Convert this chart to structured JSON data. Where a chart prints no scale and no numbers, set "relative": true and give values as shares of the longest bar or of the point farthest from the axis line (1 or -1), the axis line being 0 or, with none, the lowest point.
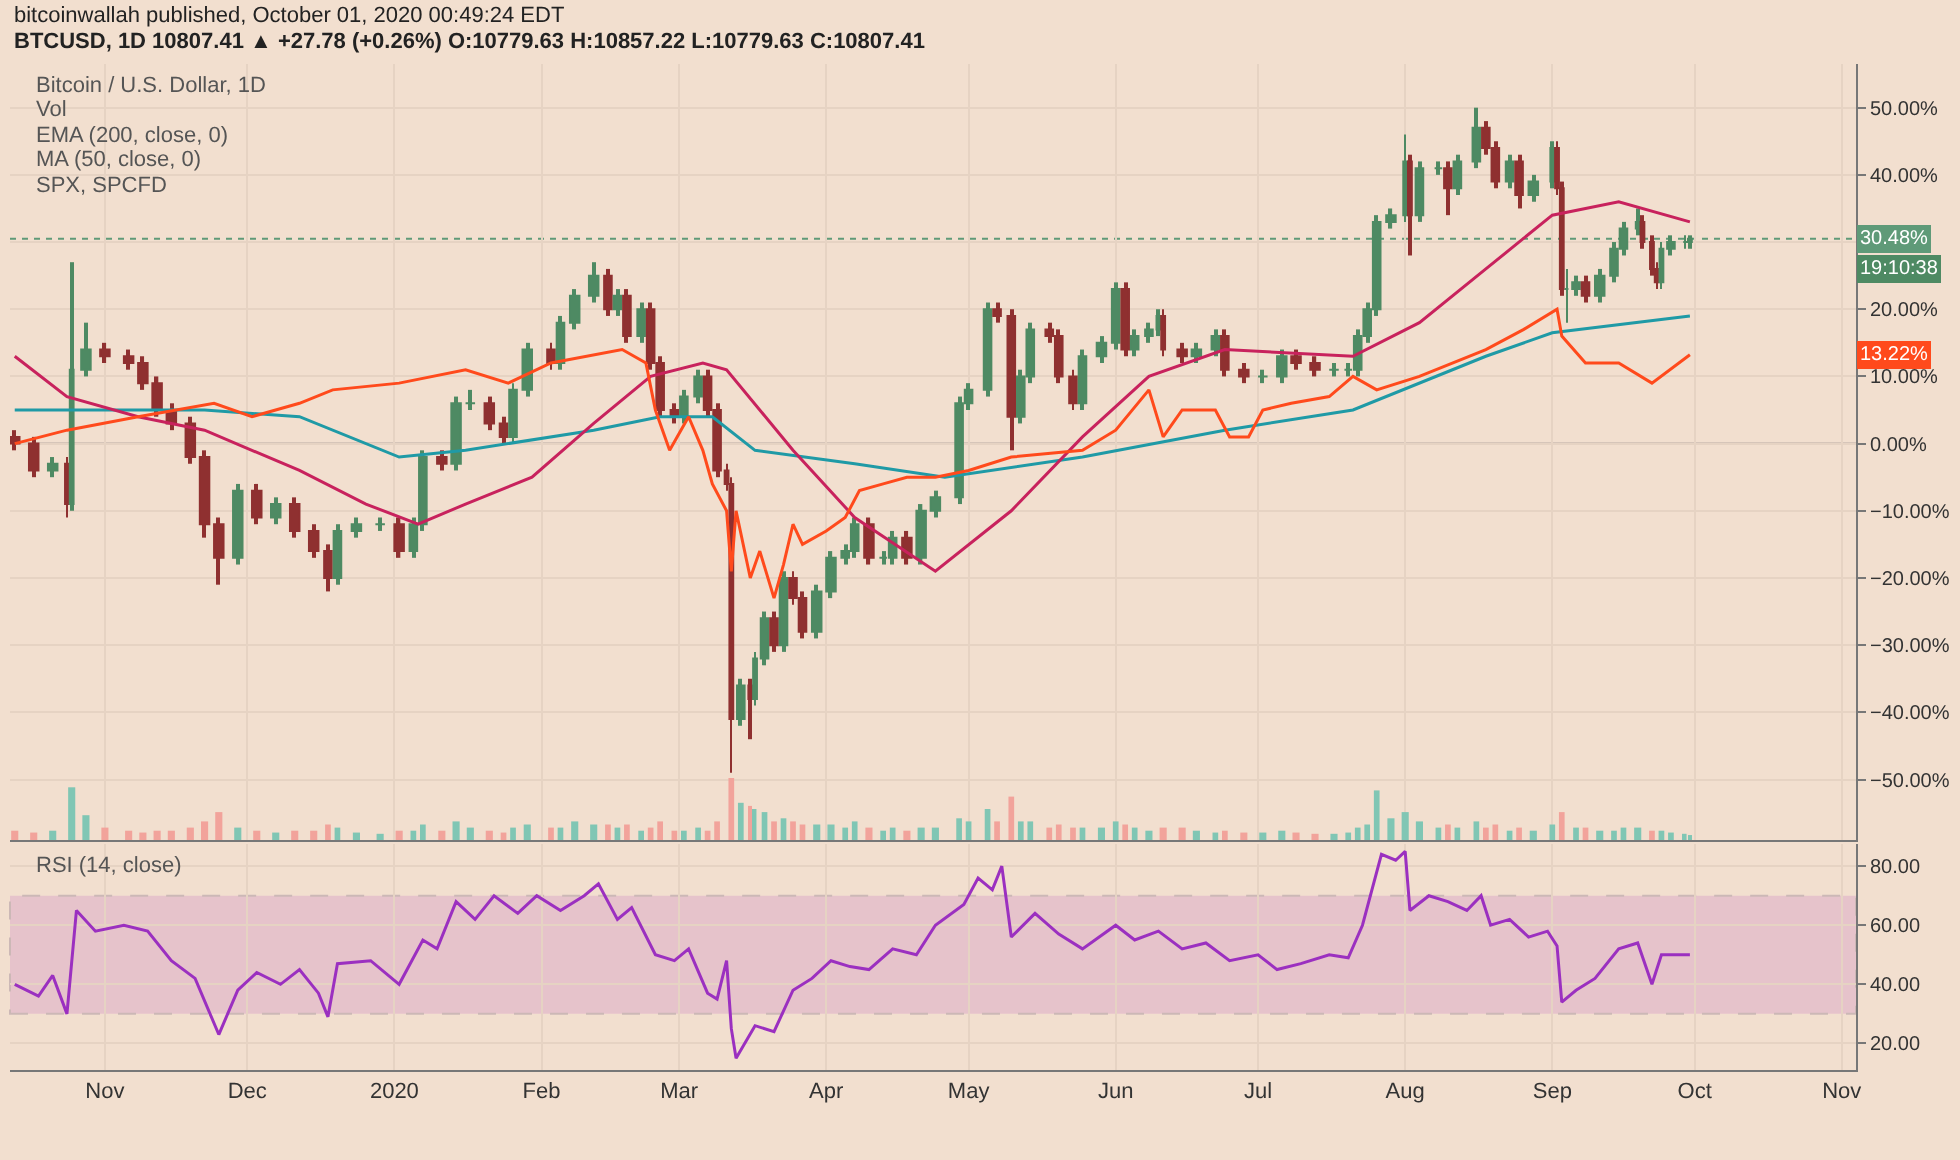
{
  "chart_data": [
    {
      "type": "candlestick",
      "title": "bitcoinwallah published, October 01, 2020 00:49:24 EDT",
      "subtitle": "BTCUSD, 1D 10807.41 ▲ +27.78 (+0.26%) O:10779.63 H:10857.22 L:10779.63 C:10807.41",
      "x": [
        "2019-10-13",
        "2019-10-17",
        "2019-10-21",
        "2019-10-24",
        "2019-10-25",
        "2019-10-28",
        "2019-11-01",
        "2019-11-06",
        "2019-11-09",
        "2019-11-12",
        "2019-11-15",
        "2019-11-19",
        "2019-11-22",
        "2019-11-25",
        "2019-11-29",
        "2019-12-03",
        "2019-12-07",
        "2019-12-11",
        "2019-12-15",
        "2019-12-18",
        "2019-12-20",
        "2019-12-24",
        "2019-12-29",
        "2020-01-02",
        "2020-01-05",
        "2020-01-07",
        "2020-01-11",
        "2020-01-14",
        "2020-01-17",
        "2020-01-21",
        "2020-01-24",
        "2020-01-26",
        "2020-01-29",
        "2020-02-03",
        "2020-02-05",
        "2020-02-08",
        "2020-02-12",
        "2020-02-15",
        "2020-02-17",
        "2020-02-19",
        "2020-02-22",
        "2020-02-24",
        "2020-02-26",
        "2020-02-29",
        "2020-03-02",
        "2020-03-05",
        "2020-03-07",
        "2020-03-09",
        "2020-03-11",
        "2020-03-12",
        "2020-03-14",
        "2020-03-16",
        "2020-03-17",
        "2020-03-19",
        "2020-03-21",
        "2020-03-23",
        "2020-03-25",
        "2020-03-27",
        "2020-03-30",
        "2020-04-02",
        "2020-04-05",
        "2020-04-07",
        "2020-04-10",
        "2020-04-13",
        "2020-04-15",
        "2020-04-18",
        "2020-04-21",
        "2020-04-24",
        "2020-04-29",
        "2020-05-01",
        "2020-05-05",
        "2020-05-07",
        "2020-05-10",
        "2020-05-12",
        "2020-05-14",
        "2020-05-18",
        "2020-05-20",
        "2020-05-23",
        "2020-05-25",
        "2020-05-29",
        "2020-06-01",
        "2020-06-03",
        "2020-06-05",
        "2020-06-08",
        "2020-06-10",
        "2020-06-11",
        "2020-06-15",
        "2020-06-18",
        "2020-06-22",
        "2020-06-24",
        "2020-06-28",
        "2020-07-02",
        "2020-07-06",
        "2020-07-09",
        "2020-07-13",
        "2020-07-17",
        "2020-07-20",
        "2020-07-22",
        "2020-07-24",
        "2020-07-26",
        "2020-07-29",
        "2020-08-01",
        "2020-08-02",
        "2020-08-04",
        "2020-08-08",
        "2020-08-10",
        "2020-08-12",
        "2020-08-16",
        "2020-08-18",
        "2020-08-20",
        "2020-08-23",
        "2020-08-25",
        "2020-08-28",
        "2020-09-01",
        "2020-09-02",
        "2020-09-03",
        "2020-09-04",
        "2020-09-06",
        "2020-09-08",
        "2020-09-11",
        "2020-09-14",
        "2020-09-16",
        "2020-09-19",
        "2020-09-20",
        "2020-09-22",
        "2020-09-23",
        "2020-09-24",
        "2020-09-26",
        "2020-09-29",
        "2020-09-30"
      ],
      "ohlc": [
        [
          1,
          2,
          -1,
          0
        ],
        [
          0,
          1,
          -5,
          -4
        ],
        [
          -4,
          -2,
          -5,
          -3
        ],
        [
          -3,
          -2,
          -11,
          -9
        ],
        [
          -9,
          27,
          -10,
          11
        ],
        [
          11,
          18,
          10,
          14
        ],
        [
          14,
          15,
          12,
          13
        ],
        [
          13,
          14,
          11,
          12
        ],
        [
          12,
          13,
          8,
          9
        ],
        [
          9,
          10,
          4,
          5
        ],
        [
          5,
          6,
          2,
          3
        ],
        [
          3,
          4,
          -3,
          -2
        ],
        [
          -2,
          -1,
          -14,
          -12
        ],
        [
          -12,
          -11,
          -21,
          -17
        ],
        [
          -17,
          -6,
          -18,
          -7
        ],
        [
          -7,
          -6,
          -12,
          -11
        ],
        [
          -11,
          -8,
          -12,
          -9
        ],
        [
          -9,
          -8,
          -14,
          -13
        ],
        [
          -13,
          -12,
          -17,
          -16
        ],
        [
          -16,
          -15,
          -22,
          -20
        ],
        [
          -20,
          -12,
          -21,
          -13
        ],
        [
          -13,
          -11,
          -14,
          -12
        ],
        [
          -12,
          -11,
          -13,
          -12
        ],
        [
          -12,
          -11,
          -17,
          -16
        ],
        [
          -16,
          -11,
          -17,
          -12
        ],
        [
          -12,
          -1,
          -13,
          -2
        ],
        [
          -2,
          -1,
          -4,
          -3
        ],
        [
          -3,
          7,
          -4,
          6
        ],
        [
          6,
          8,
          5,
          6
        ],
        [
          6,
          7,
          2,
          3
        ],
        [
          3,
          4,
          0,
          1
        ],
        [
          1,
          9,
          0,
          8
        ],
        [
          8,
          15,
          7,
          14
        ],
        [
          14,
          15,
          11,
          12
        ],
        [
          12,
          19,
          11,
          18
        ],
        [
          18,
          23,
          17,
          22
        ],
        [
          22,
          27,
          21,
          25
        ],
        [
          25,
          26,
          19,
          20
        ],
        [
          20,
          23,
          19,
          22
        ],
        [
          22,
          23,
          15,
          16
        ],
        [
          16,
          21,
          15,
          20
        ],
        [
          20,
          21,
          11,
          12
        ],
        [
          12,
          13,
          4,
          5
        ],
        [
          5,
          6,
          3,
          4
        ],
        [
          4,
          8,
          3,
          7
        ],
        [
          7,
          11,
          6,
          10
        ],
        [
          10,
          11,
          4,
          5
        ],
        [
          5,
          6,
          -5,
          -4
        ],
        [
          -4,
          -3,
          -7,
          -6
        ],
        [
          -6,
          -5,
          -49,
          -41
        ],
        [
          -41,
          -35,
          -42,
          -36
        ],
        [
          -36,
          -35,
          -44,
          -38
        ],
        [
          -38,
          -31,
          -39,
          -32
        ],
        [
          -32,
          -25,
          -33,
          -26
        ],
        [
          -26,
          -25,
          -31,
          -30
        ],
        [
          -30,
          -19,
          -31,
          -20
        ],
        [
          -20,
          -19,
          -24,
          -23
        ],
        [
          -23,
          -22,
          -29,
          -28
        ],
        [
          -28,
          -21,
          -29,
          -22
        ],
        [
          -22,
          -16,
          -23,
          -17
        ],
        [
          -17,
          -15,
          -18,
          -16
        ],
        [
          -16,
          -11,
          -17,
          -12
        ],
        [
          -12,
          -11,
          -18,
          -17
        ],
        [
          -17,
          -16,
          -18,
          -17
        ],
        [
          -17,
          -13,
          -18,
          -14
        ],
        [
          -14,
          -13,
          -18,
          -17
        ],
        [
          -17,
          -9,
          -18,
          -10
        ],
        [
          -10,
          -7,
          -11,
          -8
        ],
        [
          -8,
          7,
          -9,
          6
        ],
        [
          6,
          9,
          5,
          8
        ],
        [
          8,
          21,
          7,
          20
        ],
        [
          20,
          21,
          18,
          19
        ],
        [
          19,
          20,
          -1,
          4
        ],
        [
          4,
          11,
          3,
          10
        ],
        [
          10,
          18,
          9,
          17
        ],
        [
          17,
          18,
          15,
          16
        ],
        [
          16,
          17,
          9,
          10
        ],
        [
          10,
          11,
          5,
          6
        ],
        [
          6,
          14,
          5,
          13
        ],
        [
          13,
          16,
          12,
          15
        ],
        [
          15,
          24,
          14,
          23
        ],
        [
          23,
          24,
          13,
          14
        ],
        [
          14,
          17,
          13,
          16
        ],
        [
          16,
          18,
          15,
          17
        ],
        [
          17,
          20,
          16,
          19
        ],
        [
          19,
          20,
          13,
          14
        ],
        [
          14,
          15,
          12,
          13
        ],
        [
          13,
          15,
          12,
          14
        ],
        [
          14,
          17,
          13,
          16
        ],
        [
          16,
          17,
          10,
          11
        ],
        [
          11,
          12,
          9,
          10
        ],
        [
          10,
          11,
          9,
          10
        ],
        [
          10,
          14,
          9,
          13
        ],
        [
          13,
          14,
          11,
          12
        ],
        [
          12,
          13,
          10,
          11
        ],
        [
          11,
          12,
          10,
          11
        ],
        [
          11,
          12,
          10,
          11
        ],
        [
          11,
          17,
          10,
          16
        ],
        [
          16,
          21,
          15,
          20
        ],
        [
          20,
          34,
          19,
          33
        ],
        [
          33,
          35,
          32,
          34
        ],
        [
          34,
          46,
          33,
          42
        ],
        [
          42,
          43,
          28,
          34
        ],
        [
          34,
          42,
          33,
          41
        ],
        [
          41,
          42,
          40,
          41
        ],
        [
          41,
          42,
          34,
          38
        ],
        [
          38,
          43,
          37,
          42
        ],
        [
          42,
          50,
          41,
          47
        ],
        [
          47,
          48,
          43,
          44
        ],
        [
          44,
          45,
          38,
          39
        ],
        [
          39,
          43,
          38,
          42
        ],
        [
          42,
          43,
          35,
          37
        ],
        [
          37,
          40,
          36,
          39
        ],
        [
          39,
          45,
          38,
          44
        ],
        [
          44,
          45,
          37,
          38
        ],
        [
          38,
          39,
          22,
          23
        ],
        [
          23,
          26,
          18,
          23
        ],
        [
          23,
          25,
          22,
          24
        ],
        [
          24,
          25,
          21,
          22
        ],
        [
          22,
          26,
          21,
          25
        ],
        [
          25,
          30,
          24,
          29
        ],
        [
          29,
          33,
          28,
          32
        ],
        [
          32,
          35,
          31,
          33
        ],
        [
          33,
          34,
          29,
          30
        ],
        [
          30,
          31,
          25,
          26
        ],
        [
          26,
          27,
          23,
          24
        ],
        [
          24,
          30,
          23,
          29
        ],
        [
          29,
          31,
          28,
          30
        ],
        [
          30,
          31,
          29,
          30
        ],
        [
          30,
          31,
          29,
          30.48
        ]
      ],
      "series": [
        {
          "type": "line",
          "color": "#1f9aa6",
          "x": [
            "2019-10-13",
            "2019-11-22",
            "2019-12-12",
            "2020-01-02",
            "2020-01-16",
            "2020-02-12",
            "2020-02-26",
            "2020-03-08",
            "2020-03-17",
            "2020-04-07",
            "2020-04-26",
            "2020-05-25",
            "2020-06-24",
            "2020-07-21",
            "2020-08-18",
            "2020-09-01",
            "2020-09-30"
          ],
          "values": [
            5,
            5,
            4,
            -2,
            -1,
            2,
            4,
            4,
            -1,
            -3,
            -5,
            -2,
            2,
            5,
            13,
            16.5,
            19
          ]
        },
        {
          "type": "line",
          "color": "#c8225d",
          "x": [
            "2019-10-13",
            "2019-10-24",
            "2019-11-08",
            "2019-11-22",
            "2019-12-12",
            "2019-12-26",
            "2020-01-06",
            "2020-01-16",
            "2020-01-30",
            "2020-02-12",
            "2020-02-24",
            "2020-03-06",
            "2020-03-11",
            "2020-03-25",
            "2020-04-07",
            "2020-04-24",
            "2020-05-10",
            "2020-05-25",
            "2020-06-08",
            "2020-06-24",
            "2020-07-21",
            "2020-08-04",
            "2020-08-18",
            "2020-09-01",
            "2020-09-15",
            "2020-09-30"
          ],
          "values": [
            13,
            7,
            4,
            2,
            -4,
            -9,
            -12,
            -9,
            -5,
            3,
            10,
            12,
            11,
            -1,
            -11,
            -19,
            -10,
            1,
            10,
            14,
            13,
            18,
            26,
            34,
            36,
            33
          ]
        },
        {
          "type": "line",
          "color": "#ff4a1c",
          "x": [
            "2019-10-13",
            "2019-10-24",
            "2019-11-08",
            "2019-11-24",
            "2019-12-02",
            "2019-12-12",
            "2019-12-19",
            "2020-01-02",
            "2020-01-16",
            "2020-01-25",
            "2020-02-03",
            "2020-02-18",
            "2020-02-23",
            "2020-02-25",
            "2020-02-28",
            "2020-03-03",
            "2020-03-06",
            "2020-03-08",
            "2020-03-11",
            "2020-03-12",
            "2020-03-13",
            "2020-03-16",
            "2020-03-18",
            "2020-03-21",
            "2020-03-23",
            "2020-03-25",
            "2020-03-27",
            "2020-04-01",
            "2020-04-05",
            "2020-04-08",
            "2020-04-13",
            "2020-04-18",
            "2020-04-24",
            "2020-05-01",
            "2020-05-10",
            "2020-05-25",
            "2020-06-01",
            "2020-06-08",
            "2020-06-11",
            "2020-06-15",
            "2020-06-22",
            "2020-06-25",
            "2020-06-29",
            "2020-07-02",
            "2020-07-08",
            "2020-07-16",
            "2020-07-21",
            "2020-07-26",
            "2020-08-04",
            "2020-08-18",
            "2020-08-26",
            "2020-09-02",
            "2020-09-03",
            "2020-09-08",
            "2020-09-15",
            "2020-09-22",
            "2020-09-30"
          ],
          "values": [
            0,
            2,
            4,
            6,
            4,
            6,
            8,
            9,
            11,
            9,
            12,
            14,
            12,
            5,
            -1,
            4,
            -1,
            -6,
            -10,
            -19,
            -10,
            -20,
            -16,
            -23,
            -18,
            -12,
            -15,
            -13,
            -11,
            -7,
            -6,
            -5,
            -5,
            -4,
            -2,
            -1,
            2,
            8,
            1,
            5,
            5,
            1,
            1,
            5,
            6,
            7,
            10,
            8,
            10,
            14,
            17,
            20,
            16,
            12,
            12,
            9,
            13.22
          ]
        }
      ],
      "xlim": [
        "2019-10-12",
        "2020-11-04"
      ],
      "xticks": [
        {
          "value": "2019-11-01",
          "label": null
        },
        {
          "value": "2019-12-01",
          "label": null
        },
        {
          "value": "2020-01-01",
          "label": null
        },
        {
          "value": "2020-02-01",
          "label": null
        },
        {
          "value": "2020-03-01",
          "label": null
        },
        {
          "value": "2020-04-01",
          "label": null
        },
        {
          "value": "2020-05-01",
          "label": null
        },
        {
          "value": "2020-06-01",
          "label": null
        },
        {
          "value": "2020-07-01",
          "label": null
        },
        {
          "value": "2020-08-01",
          "label": null
        },
        {
          "value": "2020-09-01",
          "label": null
        },
        {
          "value": "2020-10-01",
          "label": null
        },
        {
          "value": "2020-11-01",
          "label": null
        }
      ],
      "ylim": [
        -59,
        56.5
      ],
      "yticks": [
        {
          "value": -50,
          "label": "−50.00%"
        },
        {
          "value": -40,
          "label": "−40.00%"
        },
        {
          "value": -30,
          "label": "−30.00%"
        },
        {
          "value": -20,
          "label": "−20.00%"
        },
        {
          "value": -10,
          "label": "−10.00%"
        },
        {
          "value": 0,
          "label": "0.00%"
        },
        {
          "value": 10,
          "label": "10.00%"
        },
        {
          "value": 20,
          "label": "20.00%"
        },
        {
          "value": 30,
          "label": null
        },
        {
          "value": 40,
          "label": "40.00%"
        },
        {
          "value": 50,
          "label": "50.00%"
        }
      ],
      "tick_labels": "y",
      "grid": true,
      "legend": false,
      "ref_lines": [
        {
          "axis": "y",
          "value": 30.48,
          "label": "30.48%",
          "color": "#5f9a78",
          "line_style": "dotted"
        },
        {
          "axis": "y",
          "value": 0,
          "color": "#b9aca3",
          "line_style": "solid"
        }
      ],
      "annotations": [
        "Bitcoin / U.S. Dollar, 1D",
        "Vol",
        "EMA (200, close, 0)",
        "MA (50, close, 0)",
        "SPX, SPCFD",
        {
          "text": "13.22%",
          "y": 13.22
        },
        "19:10:38"
      ]
    },
    {
      "type": "bar",
      "relative": true,
      "tick_labels": false,
      "x": [
        "2019-10-13",
        "2019-10-17",
        "2019-10-21",
        "2019-10-25",
        "2019-10-28",
        "2019-11-01",
        "2019-11-06",
        "2019-11-09",
        "2019-11-12",
        "2019-11-15",
        "2019-11-19",
        "2019-11-22",
        "2019-11-25",
        "2019-11-29",
        "2019-12-03",
        "2019-12-07",
        "2019-12-11",
        "2019-12-15",
        "2019-12-18",
        "2019-12-20",
        "2019-12-24",
        "2019-12-29",
        "2020-01-02",
        "2020-01-05",
        "2020-01-07",
        "2020-01-11",
        "2020-01-14",
        "2020-01-17",
        "2020-01-21",
        "2020-01-24",
        "2020-01-26",
        "2020-01-29",
        "2020-02-03",
        "2020-02-05",
        "2020-02-08",
        "2020-02-12",
        "2020-02-15",
        "2020-02-17",
        "2020-02-19",
        "2020-02-22",
        "2020-02-24",
        "2020-02-26",
        "2020-02-29",
        "2020-03-02",
        "2020-03-05",
        "2020-03-07",
        "2020-03-09",
        "2020-03-12",
        "2020-03-14",
        "2020-03-16",
        "2020-03-17",
        "2020-03-19",
        "2020-03-21",
        "2020-03-23",
        "2020-03-25",
        "2020-03-27",
        "2020-03-30",
        "2020-04-02",
        "2020-04-05",
        "2020-04-07",
        "2020-04-10",
        "2020-04-13",
        "2020-04-15",
        "2020-04-18",
        "2020-04-21",
        "2020-04-24",
        "2020-04-29",
        "2020-05-01",
        "2020-05-05",
        "2020-05-07",
        "2020-05-10",
        "2020-05-12",
        "2020-05-14",
        "2020-05-18",
        "2020-05-20",
        "2020-05-23",
        "2020-05-25",
        "2020-05-29",
        "2020-06-01",
        "2020-06-03",
        "2020-06-05",
        "2020-06-08",
        "2020-06-11",
        "2020-06-15",
        "2020-06-18",
        "2020-06-22",
        "2020-06-24",
        "2020-06-28",
        "2020-07-02",
        "2020-07-06",
        "2020-07-09",
        "2020-07-13",
        "2020-07-17",
        "2020-07-20",
        "2020-07-22",
        "2020-07-24",
        "2020-07-26",
        "2020-07-29",
        "2020-08-01",
        "2020-08-04",
        "2020-08-08",
        "2020-08-10",
        "2020-08-12",
        "2020-08-16",
        "2020-08-18",
        "2020-08-20",
        "2020-08-23",
        "2020-08-25",
        "2020-08-28",
        "2020-09-01",
        "2020-09-03",
        "2020-09-06",
        "2020-09-08",
        "2020-09-11",
        "2020-09-14",
        "2020-09-16",
        "2020-09-19",
        "2020-09-22",
        "2020-09-24",
        "2020-09-26",
        "2020-09-29",
        "2020-09-30"
      ],
      "values": [
        0.15,
        0.12,
        0.15,
        0.85,
        0.4,
        0.2,
        0.15,
        0.12,
        0.15,
        0.15,
        0.2,
        0.3,
        0.45,
        0.2,
        0.15,
        0.12,
        0.15,
        0.15,
        0.25,
        0.2,
        0.12,
        0.1,
        0.15,
        0.15,
        0.25,
        0.15,
        0.3,
        0.2,
        0.15,
        0.12,
        0.2,
        0.25,
        0.2,
        0.2,
        0.3,
        0.25,
        0.25,
        0.2,
        0.25,
        0.15,
        0.2,
        0.3,
        0.15,
        0.15,
        0.2,
        0.15,
        0.3,
        1.0,
        0.6,
        0.55,
        0.5,
        0.45,
        0.3,
        0.35,
        0.3,
        0.25,
        0.25,
        0.25,
        0.2,
        0.3,
        0.2,
        0.15,
        0.2,
        0.15,
        0.2,
        0.2,
        0.35,
        0.3,
        0.5,
        0.3,
        0.7,
        0.3,
        0.3,
        0.2,
        0.25,
        0.2,
        0.2,
        0.2,
        0.3,
        0.25,
        0.2,
        0.15,
        0.2,
        0.2,
        0.15,
        0.12,
        0.15,
        0.12,
        0.12,
        0.15,
        0.12,
        0.1,
        0.1,
        0.12,
        0.2,
        0.25,
        0.8,
        0.35,
        0.45,
        0.3,
        0.2,
        0.25,
        0.2,
        0.3,
        0.2,
        0.25,
        0.15,
        0.2,
        0.15,
        0.25,
        0.45,
        0.2,
        0.2,
        0.15,
        0.15,
        0.2,
        0.2,
        0.15,
        0.15,
        0.12,
        0.1,
        0.08
      ],
      "colors": [
        "#f2a39b",
        "#f2a39b",
        "#80c6b4",
        "#80c6b4",
        "#80c6b4",
        "#f2a39b",
        "#f2a39b",
        "#f2a39b",
        "#f2a39b",
        "#f2a39b",
        "#f2a39b",
        "#f2a39b",
        "#f2a39b",
        "#80c6b4",
        "#f2a39b",
        "#80c6b4",
        "#f2a39b",
        "#f2a39b",
        "#f2a39b",
        "#80c6b4",
        "#80c6b4",
        "#80c6b4",
        "#f2a39b",
        "#80c6b4",
        "#80c6b4",
        "#f2a39b",
        "#80c6b4",
        "#80c6b4",
        "#f2a39b",
        "#f2a39b",
        "#80c6b4",
        "#80c6b4",
        "#f2a39b",
        "#80c6b4",
        "#80c6b4",
        "#80c6b4",
        "#f2a39b",
        "#80c6b4",
        "#f2a39b",
        "#80c6b4",
        "#f2a39b",
        "#f2a39b",
        "#f2a39b",
        "#80c6b4",
        "#80c6b4",
        "#f2a39b",
        "#f2a39b",
        "#f2a39b",
        "#80c6b4",
        "#f2a39b",
        "#80c6b4",
        "#80c6b4",
        "#f2a39b",
        "#80c6b4",
        "#f2a39b",
        "#f2a39b",
        "#80c6b4",
        "#80c6b4",
        "#80c6b4",
        "#80c6b4",
        "#f2a39b",
        "#80c6b4",
        "#80c6b4",
        "#f2a39b",
        "#80c6b4",
        "#80c6b4",
        "#80c6b4",
        "#80c6b4",
        "#80c6b4",
        "#f2a39b",
        "#f2a39b",
        "#80c6b4",
        "#80c6b4",
        "#f2a39b",
        "#f2a39b",
        "#f2a39b",
        "#80c6b4",
        "#80c6b4",
        "#80c6b4",
        "#f2a39b",
        "#80c6b4",
        "#80c6b4",
        "#f2a39b",
        "#f2a39b",
        "#80c6b4",
        "#80c6b4",
        "#f2a39b",
        "#f2a39b",
        "#80c6b4",
        "#80c6b4",
        "#f2a39b",
        "#f2a39b",
        "#80c6b4",
        "#80c6b4",
        "#80c6b4",
        "#80c6b4",
        "#80c6b4",
        "#80c6b4",
        "#80c6b4",
        "#80c6b4",
        "#80c6b4",
        "#f2a39b",
        "#80c6b4",
        "#80c6b4",
        "#f2a39b",
        "#f2a39b",
        "#80c6b4",
        "#f2a39b",
        "#80c6b4",
        "#80c6b4",
        "#f2a39b",
        "#80c6b4",
        "#f2a39b",
        "#80c6b4",
        "#80c6b4",
        "#80c6b4",
        "#80c6b4",
        "#f2a39b",
        "#80c6b4",
        "#80c6b4",
        "#80c6b4",
        "#80c6b4"
      ],
      "xlim": [
        "2019-10-12",
        "2020-11-04"
      ]
    },
    {
      "type": "line",
      "color": "#9b30c0",
      "annotations": [
        "RSI (14, close)"
      ],
      "x": [
        "2019-10-13",
        "2019-10-18",
        "2019-10-21",
        "2019-10-24",
        "2019-10-26",
        "2019-10-30",
        "2019-11-05",
        "2019-11-10",
        "2019-11-15",
        "2019-11-20",
        "2019-11-25",
        "2019-11-29",
        "2019-12-03",
        "2019-12-08",
        "2019-12-12",
        "2019-12-16",
        "2019-12-18",
        "2019-12-20",
        "2019-12-27",
        "2020-01-02",
        "2020-01-07",
        "2020-01-10",
        "2020-01-14",
        "2020-01-18",
        "2020-01-22",
        "2020-01-27",
        "2020-01-31",
        "2020-02-05",
        "2020-02-10",
        "2020-02-13",
        "2020-02-17",
        "2020-02-20",
        "2020-02-25",
        "2020-02-29",
        "2020-03-03",
        "2020-03-07",
        "2020-03-09",
        "2020-03-11",
        "2020-03-12",
        "2020-03-13",
        "2020-03-17",
        "2020-03-21",
        "2020-03-25",
        "2020-03-29",
        "2020-04-02",
        "2020-04-06",
        "2020-04-10",
        "2020-04-15",
        "2020-04-20",
        "2020-04-24",
        "2020-04-30",
        "2020-05-03",
        "2020-05-06",
        "2020-05-08",
        "2020-05-10",
        "2020-05-15",
        "2020-05-20",
        "2020-05-25",
        "2020-06-01",
        "2020-06-05",
        "2020-06-10",
        "2020-06-15",
        "2020-06-20",
        "2020-06-25",
        "2020-07-01",
        "2020-07-05",
        "2020-07-10",
        "2020-07-16",
        "2020-07-20",
        "2020-07-23",
        "2020-07-27",
        "2020-07-30",
        "2020-08-01",
        "2020-08-02",
        "2020-08-06",
        "2020-08-10",
        "2020-08-14",
        "2020-08-17",
        "2020-08-19",
        "2020-08-23",
        "2020-08-27",
        "2020-08-31",
        "2020-09-02",
        "2020-09-03",
        "2020-09-06",
        "2020-09-10",
        "2020-09-15",
        "2020-09-19",
        "2020-09-22",
        "2020-09-24",
        "2020-09-30"
      ],
      "values": [
        40,
        36,
        43,
        30,
        65,
        58,
        60,
        58,
        48,
        42,
        23,
        38,
        44,
        40,
        45,
        37,
        29,
        47,
        48,
        40,
        55,
        52,
        68,
        62,
        70,
        64,
        70,
        65,
        70,
        74,
        62,
        66,
        50,
        48,
        52,
        37,
        35,
        48,
        25,
        15,
        26,
        24,
        38,
        42,
        48,
        46,
        45,
        52,
        50,
        60,
        67,
        76,
        72,
        80,
        56,
        64,
        57,
        52,
        60,
        55,
        58,
        52,
        54,
        48,
        50,
        45,
        47,
        50,
        49,
        60,
        84,
        82,
        85,
        65,
        70,
        68,
        65,
        70,
        60,
        62,
        56,
        58,
        53,
        34,
        38,
        42,
        52,
        54,
        40,
        50,
        50
      ],
      "xlim": [
        "2019-10-12",
        "2020-11-04"
      ],
      "xticks": [
        {
          "value": "2019-11-01",
          "label": "Nov"
        },
        {
          "value": "2019-12-01",
          "label": "Dec"
        },
        {
          "value": "2020-01-01",
          "label": "2020"
        },
        {
          "value": "2020-02-01",
          "label": "Feb"
        },
        {
          "value": "2020-03-01",
          "label": "Mar"
        },
        {
          "value": "2020-04-01",
          "label": "Apr"
        },
        {
          "value": "2020-05-01",
          "label": "May"
        },
        {
          "value": "2020-06-01",
          "label": "Jun"
        },
        {
          "value": "2020-07-01",
          "label": "Jul"
        },
        {
          "value": "2020-08-01",
          "label": "Aug"
        },
        {
          "value": "2020-09-01",
          "label": "Sep"
        },
        {
          "value": "2020-10-01",
          "label": "Oct"
        },
        {
          "value": "2020-11-01",
          "label": "Nov"
        }
      ],
      "ylim": [
        11,
        87.5
      ],
      "yticks": [
        {
          "value": 20,
          "label": "20.00"
        },
        {
          "value": 40,
          "label": "40.00"
        },
        {
          "value": 60,
          "label": "60.00"
        },
        {
          "value": 80,
          "label": "80.00"
        }
      ],
      "grid": true,
      "bands": [
        {
          "axis": "y",
          "from": 30,
          "to": 70,
          "color": "#d9a2c8"
        }
      ]
    }
  ]
}
